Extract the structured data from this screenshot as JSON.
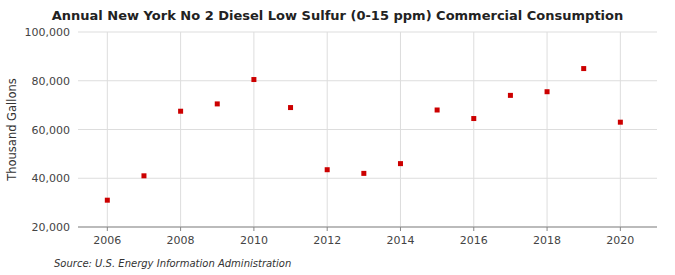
{
  "chart_data": {
    "type": "scatter",
    "title": "Annual New York No 2 Diesel Low Sulfur (0-15 ppm) Commercial Consumption",
    "ylabel": "Thousand Gallons",
    "source": "Source: U.S. Energy Information Administration",
    "x": [
      2006,
      2007,
      2008,
      2009,
      2010,
      2011,
      2012,
      2013,
      2014,
      2015,
      2016,
      2017,
      2018,
      2019,
      2020
    ],
    "values": [
      31000,
      41000,
      67500,
      70500,
      80500,
      69000,
      43500,
      42000,
      46000,
      68000,
      64500,
      74000,
      75500,
      85000,
      63000
    ],
    "color": "#cc0000",
    "marker": "square",
    "xlim": [
      2005.2,
      2021
    ],
    "xticks": [
      2006,
      2008,
      2010,
      2012,
      2014,
      2016,
      2018,
      2020
    ],
    "ylim": [
      20000,
      100000
    ],
    "yticks": [
      {
        "value": 20000,
        "label": "20,000"
      },
      {
        "value": 40000,
        "label": "40,000"
      },
      {
        "value": 60000,
        "label": "60,000"
      },
      {
        "value": 80000,
        "label": "80,000"
      },
      {
        "value": 100000,
        "label": "100,000"
      }
    ],
    "grid": true
  }
}
